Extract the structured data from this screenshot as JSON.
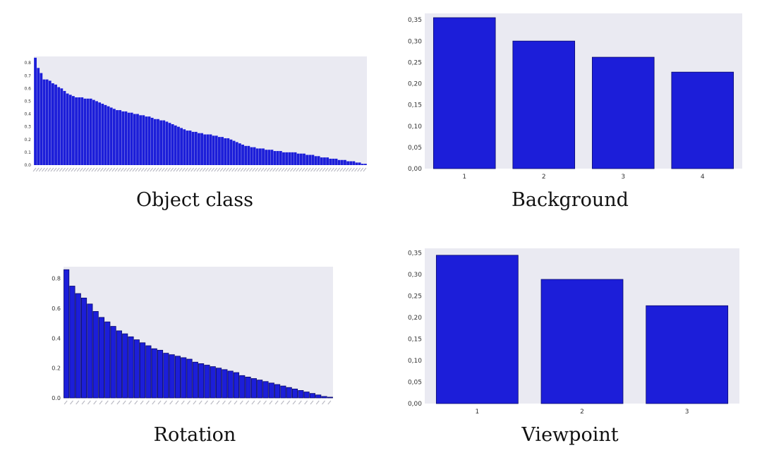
{
  "chart_data": [
    {
      "type": "bar",
      "title": "Object class",
      "x_tick_labels_legible": false,
      "values": [
        0.84,
        0.76,
        0.72,
        0.67,
        0.67,
        0.66,
        0.64,
        0.63,
        0.61,
        0.6,
        0.58,
        0.56,
        0.55,
        0.54,
        0.53,
        0.53,
        0.53,
        0.52,
        0.52,
        0.52,
        0.51,
        0.5,
        0.49,
        0.48,
        0.47,
        0.46,
        0.45,
        0.44,
        0.43,
        0.43,
        0.42,
        0.42,
        0.41,
        0.41,
        0.4,
        0.4,
        0.39,
        0.39,
        0.38,
        0.38,
        0.37,
        0.36,
        0.36,
        0.35,
        0.35,
        0.34,
        0.33,
        0.32,
        0.31,
        0.3,
        0.29,
        0.28,
        0.27,
        0.27,
        0.26,
        0.26,
        0.25,
        0.25,
        0.24,
        0.24,
        0.24,
        0.23,
        0.23,
        0.22,
        0.22,
        0.21,
        0.21,
        0.2,
        0.19,
        0.18,
        0.17,
        0.16,
        0.15,
        0.15,
        0.14,
        0.14,
        0.13,
        0.13,
        0.13,
        0.12,
        0.12,
        0.12,
        0.11,
        0.11,
        0.11,
        0.1,
        0.1,
        0.1,
        0.1,
        0.1,
        0.09,
        0.09,
        0.09,
        0.08,
        0.08,
        0.08,
        0.07,
        0.07,
        0.06,
        0.06,
        0.06,
        0.05,
        0.05,
        0.05,
        0.04,
        0.04,
        0.04,
        0.03,
        0.03,
        0.03,
        0.02,
        0.02,
        0.01,
        0.01
      ],
      "ylim": [
        0,
        0.85
      ],
      "yticks": [
        "0.0",
        "0.1",
        "0.2",
        "0.3",
        "0.4",
        "0.5",
        "0.6",
        "0.7",
        "0.8"
      ],
      "grid": false
    },
    {
      "type": "bar",
      "title": "Background",
      "categories": [
        "1",
        "2",
        "3",
        "4"
      ],
      "values": [
        0.355,
        0.3,
        0.262,
        0.227
      ],
      "ylim": [
        0,
        0.365
      ],
      "yticks": [
        "0,00",
        "0,05",
        "0,10",
        "0,15",
        "0,20",
        "0,25",
        "0,30",
        "0,35"
      ],
      "grid": false
    },
    {
      "type": "bar",
      "title": "Rotation",
      "x_tick_labels_legible": false,
      "values": [
        0.86,
        0.75,
        0.7,
        0.67,
        0.63,
        0.58,
        0.54,
        0.51,
        0.48,
        0.45,
        0.43,
        0.41,
        0.39,
        0.37,
        0.35,
        0.33,
        0.32,
        0.3,
        0.29,
        0.28,
        0.27,
        0.26,
        0.24,
        0.23,
        0.22,
        0.21,
        0.2,
        0.19,
        0.18,
        0.17,
        0.15,
        0.14,
        0.13,
        0.12,
        0.11,
        0.1,
        0.09,
        0.08,
        0.07,
        0.06,
        0.05,
        0.04,
        0.03,
        0.02,
        0.01,
        0.005
      ],
      "ylim": [
        0,
        0.88
      ],
      "yticks": [
        "0.0",
        "0.2",
        "0.4",
        "0.6",
        "0.8"
      ],
      "grid": false
    },
    {
      "type": "bar",
      "title": "Viewpoint",
      "categories": [
        "1",
        "2",
        "3"
      ],
      "values": [
        0.344,
        0.288,
        0.227
      ],
      "ylim": [
        0,
        0.36
      ],
      "yticks": [
        "0,00",
        "0,05",
        "0,10",
        "0,15",
        "0,20",
        "0,25",
        "0,30",
        "0,35"
      ],
      "grid": false
    }
  ],
  "colors": {
    "bar": "#1c1ed9",
    "bar_edge": "#0a0a6e",
    "plot_bg": "#eaeaf2"
  }
}
